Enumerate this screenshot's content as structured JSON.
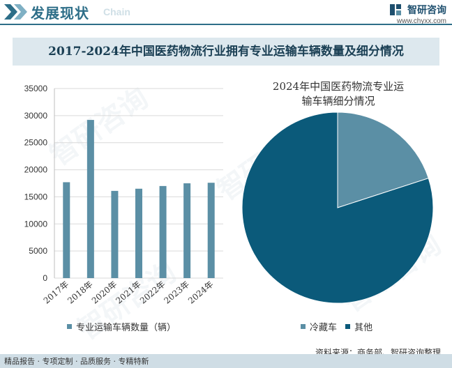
{
  "header": {
    "title": "发展现状",
    "subtitle": "Chain",
    "brand_name": "智研咨询",
    "brand_url": "www.chyxx.com"
  },
  "main_title": "2017-2024年中国医药物流行业拥有专业运输车辆数量及细分情况",
  "watermark_text": "智研咨询",
  "chart_data": [
    {
      "type": "bar",
      "categories": [
        "2017年",
        "2018年",
        "2020年",
        "2021年",
        "2022年",
        "2023年",
        "2024年"
      ],
      "series": [
        {
          "name": "专业运输车辆数量（辆）",
          "values": [
            17700,
            29200,
            16100,
            16500,
            17000,
            17500,
            17600
          ]
        }
      ],
      "ylim": [
        0,
        35000
      ],
      "yticks": [
        "0",
        "5000",
        "10000",
        "15000",
        "20000",
        "25000",
        "30000",
        "35000"
      ],
      "grid": true,
      "legend": "bottom",
      "color": "#5b8fa5"
    },
    {
      "type": "pie",
      "title": "2024年中国医药物流专业运输车辆细分情况",
      "title_line1": "2024年中国医药物流专业运",
      "title_line2": "输车辆细分情况",
      "slices": [
        {
          "label": "冷藏车",
          "value": 20,
          "color": "#5b8fa5"
        },
        {
          "label": "其他",
          "value": 80,
          "color": "#0b5a7a"
        }
      ],
      "legend": "bottom"
    }
  ],
  "footer": {
    "left": "精品报告 · 专项定制 · 品质服务 · 专精特新",
    "right": "资料来源：商务部、智研咨询整理"
  }
}
